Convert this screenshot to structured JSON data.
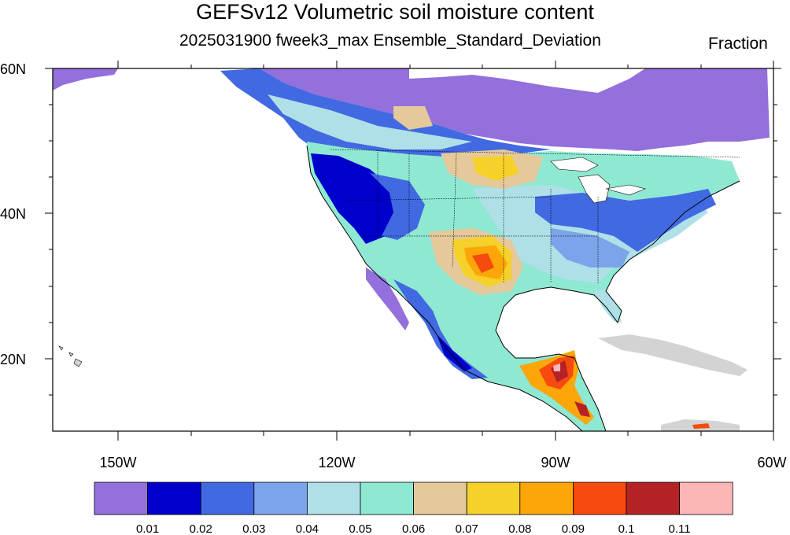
{
  "title": "GEFSv12 Volumetric soil moisture content",
  "subtitle": "2025031900 fweek3_max Ensemble_Standard_Deviation",
  "units": "Fraction",
  "axes": {
    "lat_labels": [
      "60N",
      "40N",
      "20N"
    ],
    "lon_labels": [
      "150W",
      "120W",
      "90W",
      "60W"
    ]
  },
  "colorbar": {
    "colors": [
      "#9370db",
      "#0000cd",
      "#4169e1",
      "#7ca4ea",
      "#afe0e8",
      "#8fe8d2",
      "#e6c99a",
      "#f5d12a",
      "#fca60a",
      "#f74a0e",
      "#b52226",
      "#fcb6b6"
    ],
    "labels": [
      "0.01",
      "0.02",
      "0.03",
      "0.04",
      "0.05",
      "0.06",
      "0.07",
      "0.08",
      "0.09",
      "0.1",
      "0.11"
    ]
  },
  "colors": {
    "ocean": "#ffffff",
    "border": "#000000",
    "no_data": "#d3d3d3"
  }
}
